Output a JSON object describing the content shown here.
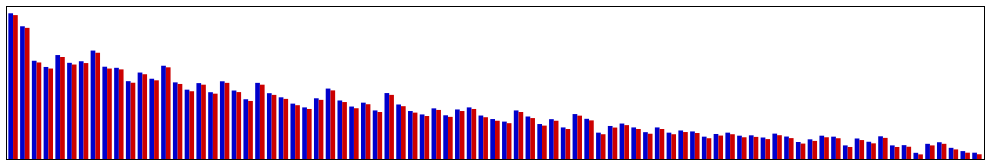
{
  "chart_data": {
    "type": "bar",
    "categories": [
      null,
      null,
      null,
      null,
      null,
      null,
      null,
      null,
      null,
      null,
      null,
      null,
      null,
      null,
      null,
      null,
      null,
      null,
      null,
      null,
      null,
      null,
      null,
      null,
      null,
      null,
      null,
      null,
      null,
      null,
      null,
      null,
      null,
      null,
      null,
      null,
      null,
      null,
      null,
      null,
      null,
      null,
      null,
      null,
      null,
      null,
      null,
      null,
      null,
      null,
      null,
      null,
      null,
      null,
      null,
      null,
      null,
      null,
      null,
      null,
      null,
      null,
      null,
      null,
      null,
      null,
      null,
      null,
      null,
      null,
      null,
      null,
      null,
      null,
      null,
      null,
      null,
      null,
      null,
      null,
      null,
      null,
      null
    ],
    "series": [
      {
        "color": "#0000cc",
        "values": [
          12.0,
          10.93,
          8.09,
          7.58,
          8.56,
          7.92,
          8.05,
          8.93,
          7.6,
          7.51,
          6.41,
          7.12,
          6.61,
          7.68,
          6.31,
          5.71,
          6.25,
          5.5,
          6.4,
          5.64,
          4.92,
          6.27,
          5.42,
          5.08,
          4.56,
          4.25,
          5.0,
          5.8,
          4.82,
          4.32,
          4.64,
          4.0,
          5.43,
          4.49,
          3.95,
          3.67,
          4.17,
          3.6,
          4.08,
          4.25,
          3.58,
          3.29,
          3.08,
          4.0,
          3.5,
          2.88,
          3.28,
          2.6,
          3.7,
          3.31,
          2.17,
          2.72,
          2.92,
          2.6,
          2.21,
          2.6,
          2.17,
          2.35,
          2.27,
          1.84,
          2.06,
          2.17,
          1.92,
          1.95,
          1.77,
          2.09,
          1.85,
          1.4,
          1.62,
          1.92,
          1.84,
          1.12,
          1.69,
          1.42,
          1.87,
          1.12,
          1.14,
          0.51,
          1.25,
          1.38,
          0.92,
          0.65,
          0.52
        ]
      },
      {
        "color": "#cc0000",
        "values": [
          11.85,
          10.8,
          7.95,
          7.45,
          8.4,
          7.78,
          7.9,
          8.75,
          7.45,
          7.38,
          6.28,
          6.98,
          6.48,
          7.55,
          6.18,
          5.58,
          6.12,
          5.38,
          6.27,
          5.51,
          4.78,
          6.12,
          5.28,
          4.95,
          4.43,
          4.12,
          4.87,
          5.65,
          4.69,
          4.18,
          4.51,
          3.87,
          5.28,
          4.35,
          3.82,
          3.54,
          4.04,
          3.47,
          3.95,
          4.12,
          3.44,
          3.15,
          2.95,
          3.87,
          3.37,
          2.75,
          3.15,
          2.47,
          3.57,
          3.18,
          2.04,
          2.59,
          2.79,
          2.47,
          2.08,
          2.47,
          2.04,
          2.22,
          2.14,
          1.71,
          1.93,
          2.04,
          1.79,
          1.82,
          1.64,
          1.96,
          1.72,
          1.27,
          1.49,
          1.79,
          1.71,
          0.99,
          1.56,
          1.29,
          1.74,
          0.99,
          1.01,
          0.38,
          1.12,
          1.25,
          0.79,
          0.52,
          0.39
        ]
      }
    ],
    "ylim": [
      0,
      12.6
    ],
    "yticks": [],
    "grid": false,
    "tick_labels": false
  }
}
